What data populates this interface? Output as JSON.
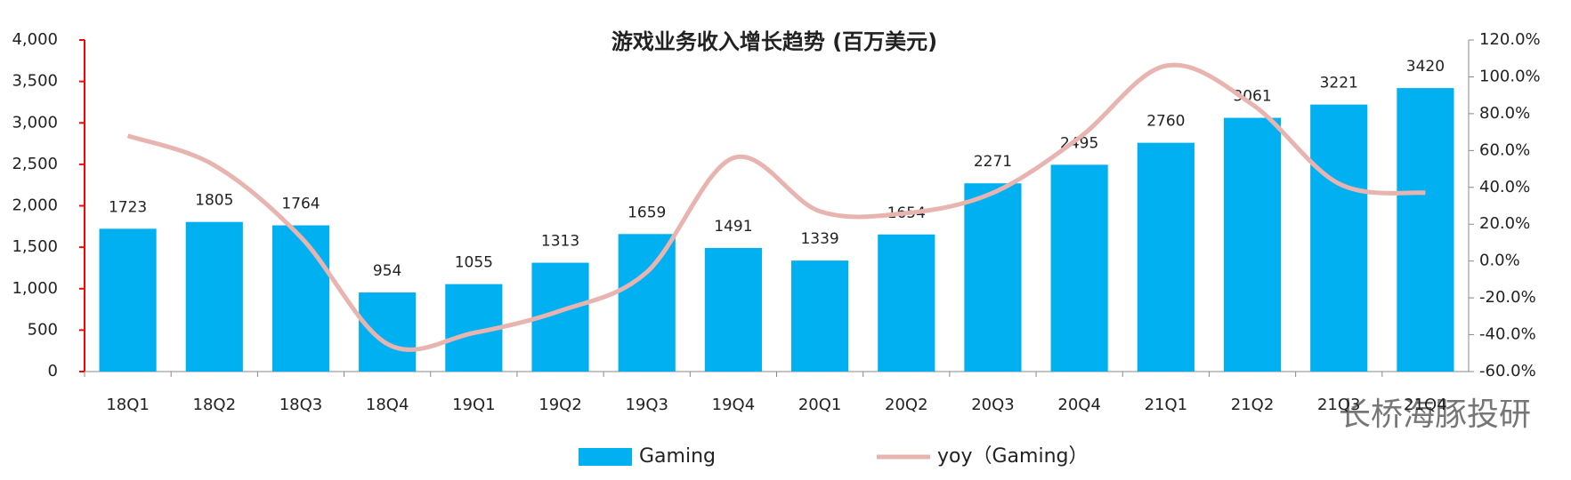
{
  "chart_data": {
    "type": "bar_line",
    "title": "游戏业务收入增长趋势 (百万美元)",
    "categories": [
      "18Q1",
      "18Q2",
      "18Q3",
      "18Q4",
      "19Q1",
      "19Q2",
      "19Q3",
      "19Q4",
      "20Q1",
      "20Q2",
      "20Q3",
      "20Q4",
      "21Q1",
      "21Q2",
      "21Q3",
      "21Q4"
    ],
    "series": [
      {
        "name": "Gaming",
        "type": "bar",
        "color": "#00b0f0",
        "values": [
          1723,
          1805,
          1764,
          954,
          1055,
          1313,
          1659,
          1491,
          1339,
          1654,
          2271,
          2495,
          2760,
          3061,
          3221,
          3420
        ]
      },
      {
        "name": "yoy（Gaming）",
        "type": "line",
        "axis": "y2",
        "color": "#e8b4b0",
        "values": [
          68,
          52,
          13,
          -45,
          -39,
          -27,
          -6,
          56,
          27,
          26,
          37,
          67,
          106,
          85,
          42,
          37
        ]
      }
    ],
    "ylim": [
      0,
      4000
    ],
    "yticks": [
      0,
      500,
      {
        "value": 1000,
        "label": "1,000"
      },
      {
        "value": 1500,
        "label": "1,500"
      },
      {
        "value": 2000,
        "label": "2,000"
      },
      {
        "value": 2500,
        "label": "2,500"
      },
      {
        "value": 3000,
        "label": "3,000"
      },
      {
        "value": 3500,
        "label": "3,500"
      },
      {
        "value": 4000,
        "label": "4,000"
      }
    ],
    "y2lim": [
      -60,
      120
    ],
    "y2ticks": [
      {
        "value": -60,
        "label": "-60.0%"
      },
      {
        "value": -40,
        "label": "-40.0%"
      },
      {
        "value": -20,
        "label": "-20.0%"
      },
      {
        "value": 0,
        "label": "0.0%"
      },
      {
        "value": 20,
        "label": "20.0%"
      },
      {
        "value": 40,
        "label": "40.0%"
      },
      {
        "value": 60,
        "label": "60.0%"
      },
      {
        "value": 80,
        "label": "80.0%"
      },
      {
        "value": 100,
        "label": "100.0%"
      },
      {
        "value": 120,
        "label": "120.0%"
      }
    ],
    "watermark": "长桥海豚投研"
  }
}
